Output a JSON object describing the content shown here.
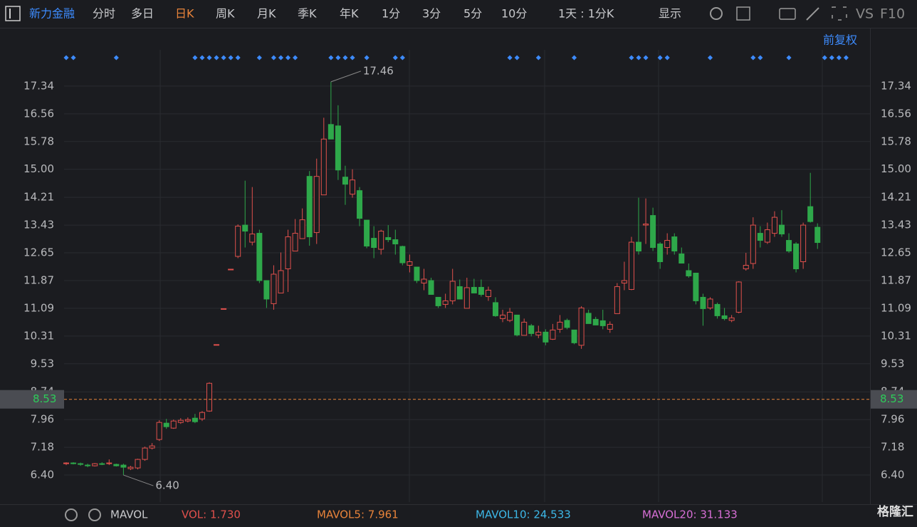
{
  "toolbar": {
    "stock": "新力金融",
    "tabs": [
      "分时",
      "多日",
      "日K",
      "周K",
      "月K",
      "季K",
      "年K",
      "1分",
      "3分",
      "5分",
      "10分"
    ],
    "active": "日K",
    "period": "1天 : 1分K",
    "display": "显示",
    "vs": "VS",
    "f10": "F10",
    "adjust": "前复权"
  },
  "chart_data": {
    "type": "candlestick",
    "ylim": [
      5.64,
      18.96
    ],
    "yticks": [
      {
        "value": 6.4,
        "label": "6.40"
      },
      7.18,
      7.96,
      8.74,
      9.53,
      10.31,
      11.09,
      11.87,
      12.65,
      13.43,
      14.21,
      {
        "value": 15,
        "label": "15.00"
      },
      15.78,
      16.56,
      17.34
    ],
    "up_color": "#e0504c",
    "down_color": "#2ea84a",
    "open": [
      6.72,
      6.74,
      6.72,
      6.68,
      6.66,
      6.72,
      6.72,
      6.7,
      6.68,
      6.58,
      6.6,
      6.84,
      7.16,
      7.4,
      7.86,
      7.72,
      7.88,
      7.92,
      8.0,
      7.98,
      8.2,
      10.07,
      11.08,
      12.19,
      12.55,
      13.43,
      12.95,
      13.2,
      11.87,
      11.22,
      11.52,
      12.2,
      12.7,
      13.05,
      14.8,
      13.22,
      14.28,
      16.26,
      16.22,
      14.78,
      14.3,
      14.4,
      13.57,
      13.06,
      12.75,
      13.08,
      13.02,
      12.83,
      12.3,
      12.25,
      11.8,
      11.87,
      11.4,
      11.2,
      11.3,
      11.7,
      11.09,
      11.68,
      11.68,
      11.42,
      11.25,
      10.8,
      10.75,
      10.9,
      10.33,
      10.6,
      10.34,
      10.42,
      10.22,
      10.5,
      10.75,
      10.48,
      10.05,
      10.95,
      10.78,
      10.74,
      10.5,
      10.94,
      11.8,
      11.62,
      12.95,
      13.43,
      13.7,
      12.9,
      12.8,
      13.1,
      12.62,
      12.15,
      12.08,
      11.4,
      11.1,
      11.2,
      10.88,
      10.75,
      10.98,
      12.2,
      12.35,
      13.2,
      12.95,
      13.2,
      13.43,
      13.0,
      12.9,
      12.4,
      13.95,
      13.37
    ],
    "high": [
      6.76,
      6.76,
      6.75,
      6.72,
      6.74,
      6.76,
      6.84,
      6.72,
      6.72,
      6.66,
      6.86,
      7.2,
      7.3,
      7.94,
      7.98,
      7.96,
      8.0,
      8.02,
      8.12,
      8.2,
      9.01,
      10.07,
      11.08,
      12.19,
      13.45,
      14.68,
      14.5,
      13.3,
      11.87,
      12.3,
      12.66,
      13.3,
      13.6,
      13.9,
      14.95,
      15.3,
      16.45,
      17.46,
      16.8,
      15.1,
      15.0,
      14.5,
      13.57,
      13.4,
      13.3,
      13.43,
      13.3,
      12.85,
      12.6,
      12.25,
      12.2,
      11.95,
      11.4,
      11.5,
      12.2,
      11.9,
      11.95,
      11.92,
      11.9,
      11.7,
      11.4,
      11.05,
      11.1,
      10.9,
      10.8,
      10.65,
      10.6,
      10.5,
      10.65,
      10.9,
      10.8,
      10.48,
      11.15,
      11.05,
      10.85,
      11.05,
      10.72,
      11.8,
      12.4,
      13.1,
      14.2,
      14.18,
      13.92,
      12.95,
      13.2,
      13.2,
      12.8,
      12.35,
      12.08,
      11.5,
      11.4,
      11.25,
      11.1,
      10.9,
      11.85,
      12.65,
      13.65,
      13.4,
      13.5,
      13.82,
      13.85,
      13.2,
      12.95,
      13.5,
      14.9,
      13.48
    ],
    "low": [
      6.68,
      6.7,
      6.66,
      6.62,
      6.64,
      6.68,
      6.68,
      6.64,
      6.4,
      6.54,
      6.56,
      6.8,
      7.12,
      7.36,
      7.7,
      7.7,
      7.84,
      7.88,
      7.86,
      7.92,
      8.18,
      10.07,
      11.08,
      12.19,
      12.5,
      12.8,
      12.86,
      11.8,
      11.1,
      11.05,
      11.52,
      11.55,
      12.7,
      13.05,
      12.85,
      12.9,
      14.28,
      15.85,
      14.7,
      14.0,
      14.2,
      13.4,
      12.78,
      12.5,
      12.6,
      12.95,
      12.6,
      12.3,
      12.1,
      11.8,
      11.6,
      11.48,
      11.1,
      11.1,
      11.2,
      11.35,
      11.09,
      11.52,
      11.42,
      11.3,
      10.85,
      10.7,
      10.7,
      10.3,
      10.33,
      10.3,
      10.25,
      10.05,
      10.2,
      10.4,
      10.5,
      10.08,
      9.95,
      10.66,
      10.62,
      10.5,
      10.4,
      10.94,
      11.6,
      11.6,
      12.6,
      12.9,
      12.7,
      12.2,
      12.6,
      12.6,
      12.36,
      11.95,
      11.2,
      10.6,
      11.05,
      10.8,
      10.75,
      10.7,
      10.95,
      12.15,
      12.2,
      12.8,
      12.9,
      13.1,
      13.1,
      12.65,
      12.1,
      12.2,
      13.5,
      12.76
    ],
    "close": [
      6.74,
      6.72,
      6.7,
      6.66,
      6.72,
      6.7,
      6.74,
      6.66,
      6.62,
      6.62,
      6.84,
      7.16,
      7.22,
      7.88,
      7.76,
      7.92,
      7.94,
      7.96,
      7.9,
      8.16,
      8.98,
      10.07,
      11.08,
      12.19,
      13.4,
      13.26,
      13.18,
      11.87,
      11.35,
      12.05,
      12.15,
      13.1,
      13.2,
      13.58,
      13.1,
      14.8,
      15.85,
      15.85,
      14.98,
      14.58,
      14.7,
      13.62,
      12.84,
      12.8,
      13.26,
      13.02,
      12.9,
      12.37,
      12.4,
      11.87,
      11.91,
      11.48,
      11.16,
      11.3,
      11.85,
      11.35,
      11.67,
      11.52,
      11.48,
      11.6,
      10.88,
      10.9,
      10.98,
      10.34,
      10.7,
      10.38,
      10.42,
      10.14,
      10.48,
      10.7,
      10.55,
      10.12,
      11.1,
      10.66,
      10.62,
      10.6,
      10.64,
      11.7,
      11.87,
      12.95,
      12.7,
      13.46,
      12.8,
      12.4,
      13.0,
      12.7,
      12.36,
      12.0,
      11.3,
      11.08,
      11.35,
      10.88,
      10.8,
      10.82,
      11.83,
      12.3,
      13.43,
      13.0,
      13.3,
      13.65,
      13.18,
      12.7,
      12.2,
      13.43,
      13.53,
      12.94
    ],
    "annotations": [
      17.46,
      {
        "value": 6.4,
        "label": "6.40"
      }
    ],
    "last_price": 8.53,
    "last_price_color": "#e8833a"
  },
  "footer": {
    "indicator": "MAVOL",
    "vol": "VOL: 1.730",
    "mavol5": "MAVOL5: 7.961",
    "mavol10": "MAVOL10: 24.533",
    "mavol20": "MAVOL20: 31.133",
    "logo": "格隆汇"
  }
}
